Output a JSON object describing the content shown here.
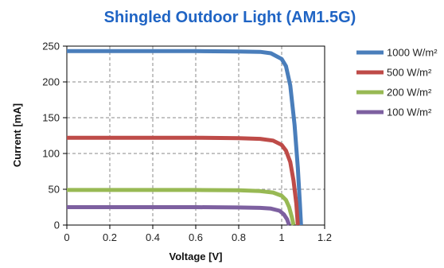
{
  "chart_data": {
    "type": "line",
    "title": "Shingled Outdoor Light (AM1.5G)",
    "title_color": "#1f64c4",
    "xlabel": "Voltage [V]",
    "ylabel": "Current [mA]",
    "xlim": [
      0,
      1.2
    ],
    "ylim": [
      0,
      250
    ],
    "x_ticks": [
      "0",
      "0.2",
      "0.4",
      "0.6",
      "0.8",
      "1",
      "1.2"
    ],
    "y_ticks": [
      "0",
      "50",
      "100",
      "150",
      "200",
      "250"
    ],
    "grid": true,
    "legend_position": "right",
    "series": [
      {
        "name": "1000 W/m²",
        "color": "#4a7ebb",
        "points": [
          [
            0,
            243
          ],
          [
            0.2,
            243
          ],
          [
            0.4,
            243
          ],
          [
            0.6,
            243
          ],
          [
            0.8,
            242.5
          ],
          [
            0.9,
            242
          ],
          [
            0.95,
            240
          ],
          [
            1.0,
            232
          ],
          [
            1.02,
            222
          ],
          [
            1.04,
            195
          ],
          [
            1.06,
            140
          ],
          [
            1.075,
            80
          ],
          [
            1.085,
            30
          ],
          [
            1.09,
            0
          ]
        ]
      },
      {
        "name": "500 W/m²",
        "color": "#be4b48",
        "points": [
          [
            0,
            122
          ],
          [
            0.2,
            122
          ],
          [
            0.4,
            122
          ],
          [
            0.6,
            122
          ],
          [
            0.8,
            121.5
          ],
          [
            0.9,
            120.5
          ],
          [
            0.96,
            118
          ],
          [
            1.0,
            112
          ],
          [
            1.02,
            104
          ],
          [
            1.04,
            88
          ],
          [
            1.055,
            62
          ],
          [
            1.068,
            30
          ],
          [
            1.075,
            0
          ]
        ]
      },
      {
        "name": "200 W/m²",
        "color": "#98b954",
        "points": [
          [
            0,
            49
          ],
          [
            0.2,
            49
          ],
          [
            0.4,
            49
          ],
          [
            0.6,
            49
          ],
          [
            0.8,
            48.5
          ],
          [
            0.9,
            47.5
          ],
          [
            0.96,
            45.5
          ],
          [
            1.0,
            41
          ],
          [
            1.02,
            35
          ],
          [
            1.035,
            25
          ],
          [
            1.048,
            10
          ],
          [
            1.055,
            0
          ]
        ]
      },
      {
        "name": "100 W/m²",
        "color": "#7d60a0",
        "points": [
          [
            0,
            25
          ],
          [
            0.2,
            25
          ],
          [
            0.4,
            25
          ],
          [
            0.6,
            25
          ],
          [
            0.8,
            24.5
          ],
          [
            0.9,
            24
          ],
          [
            0.95,
            23
          ],
          [
            0.99,
            20
          ],
          [
            1.01,
            15
          ],
          [
            1.025,
            8
          ],
          [
            1.035,
            0
          ]
        ]
      }
    ]
  }
}
